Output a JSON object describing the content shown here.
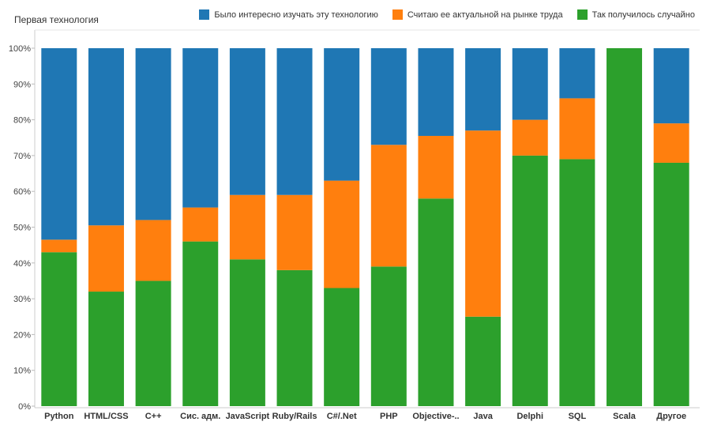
{
  "chart_data": {
    "type": "bar",
    "stacked": true,
    "normalized": true,
    "title": "Первая технология",
    "categories": [
      "Python",
      "HTML/CSS",
      "C++",
      "Сис. адм.",
      "JavaScript",
      "Ruby/Rails",
      "C#/.Net",
      "PHP",
      "Objective-..",
      "Java",
      "Delphi",
      "SQL",
      "Scala",
      "Другое"
    ],
    "series": [
      {
        "name": "Так получилось случайно",
        "color": "#2ca02c",
        "values": [
          43,
          32,
          35,
          46,
          41,
          38,
          33,
          39,
          58,
          25,
          70,
          69,
          100,
          68
        ]
      },
      {
        "name": "Считаю ее актуальной на рынке труда",
        "color": "#ff7f0e",
        "values": [
          3.5,
          18.5,
          17,
          9.5,
          18,
          21,
          30,
          34,
          17.5,
          52,
          10,
          17,
          0,
          11
        ]
      },
      {
        "name": "Было интересно изучать эту технологию",
        "color": "#1f77b4",
        "values": [
          53.5,
          49.5,
          48,
          44.5,
          41,
          41,
          37,
          27,
          24.5,
          23,
          20,
          14,
          0,
          21
        ]
      }
    ],
    "yticks": [
      "0%",
      "10%",
      "20%",
      "30%",
      "40%",
      "50%",
      "60%",
      "70%",
      "80%",
      "90%",
      "100%"
    ],
    "ylim": [
      0,
      100
    ],
    "legend_position": "top-right",
    "grid": false
  },
  "legend_order": [
    2,
    1,
    0
  ]
}
